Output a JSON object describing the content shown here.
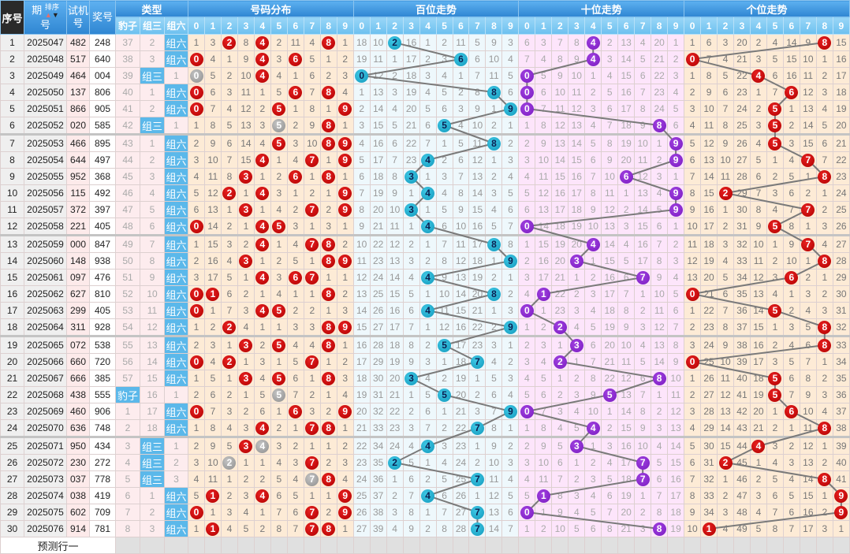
{
  "header": {
    "seq": "序号",
    "period_a": "期",
    "period_b": "号",
    "sort_label": "排序",
    "test_a": "试机",
    "test_b": "号",
    "award": "奖号",
    "type": "类型",
    "dist": "号码分布",
    "bai": "百位走势",
    "shi": "十位走势",
    "ge": "个位走势",
    "type_cols": [
      "豹子",
      "组三",
      "组六"
    ],
    "digits": [
      "0",
      "1",
      "2",
      "3",
      "4",
      "5",
      "6",
      "7",
      "8",
      "9"
    ]
  },
  "rows": [
    {
      "seq": "1",
      "period": "2025047",
      "test": "482",
      "award": "248"
    },
    {
      "seq": "2",
      "period": "2025048",
      "test": "517",
      "award": "640"
    },
    {
      "seq": "3",
      "period": "2025049",
      "test": "464",
      "award": "004"
    },
    {
      "seq": "4",
      "period": "2025050",
      "test": "137",
      "award": "806"
    },
    {
      "seq": "5",
      "period": "2025051",
      "test": "866",
      "award": "905"
    },
    {
      "seq": "6",
      "period": "2025052",
      "test": "020",
      "award": "585"
    },
    {
      "seq": "7",
      "period": "2025053",
      "test": "466",
      "award": "895"
    },
    {
      "seq": "8",
      "period": "2025054",
      "test": "644",
      "award": "497"
    },
    {
      "seq": "9",
      "period": "2025055",
      "test": "952",
      "award": "368"
    },
    {
      "seq": "10",
      "period": "2025056",
      "test": "115",
      "award": "492"
    },
    {
      "seq": "11",
      "period": "2025057",
      "test": "372",
      "award": "397"
    },
    {
      "seq": "12",
      "period": "2025058",
      "test": "221",
      "award": "405"
    },
    {
      "seq": "13",
      "period": "2025059",
      "test": "000",
      "award": "847"
    },
    {
      "seq": "14",
      "period": "2025060",
      "test": "148",
      "award": "938"
    },
    {
      "seq": "15",
      "period": "2025061",
      "test": "097",
      "award": "476"
    },
    {
      "seq": "16",
      "period": "2025062",
      "test": "627",
      "award": "810"
    },
    {
      "seq": "17",
      "period": "2025063",
      "test": "299",
      "award": "405"
    },
    {
      "seq": "18",
      "period": "2025064",
      "test": "311",
      "award": "928"
    },
    {
      "seq": "19",
      "period": "2025065",
      "test": "072",
      "award": "538"
    },
    {
      "seq": "20",
      "period": "2025066",
      "test": "660",
      "award": "720"
    },
    {
      "seq": "21",
      "period": "2025067",
      "test": "666",
      "award": "385"
    },
    {
      "seq": "22",
      "period": "2025068",
      "test": "438",
      "award": "555"
    },
    {
      "seq": "23",
      "period": "2025069",
      "test": "460",
      "award": "906"
    },
    {
      "seq": "24",
      "period": "2025070",
      "test": "636",
      "award": "748"
    },
    {
      "seq": "25",
      "period": "2025071",
      "test": "950",
      "award": "434"
    },
    {
      "seq": "26",
      "period": "2025072",
      "test": "230",
      "award": "272"
    },
    {
      "seq": "27",
      "period": "2025073",
      "test": "037",
      "award": "778"
    },
    {
      "seq": "28",
      "period": "2025074",
      "test": "038",
      "award": "419"
    },
    {
      "seq": "29",
      "period": "2025075",
      "test": "602",
      "award": "709"
    },
    {
      "seq": "30",
      "period": "2025076",
      "test": "914",
      "award": "781"
    }
  ],
  "first_row_omissions": {
    "type": [
      37,
      2,
      null
    ],
    "dist": [
      1,
      3,
      null,
      8,
      null,
      2,
      11,
      4,
      null,
      1
    ],
    "bai": [
      18,
      10,
      null,
      16,
      1,
      2,
      11,
      5,
      9,
      3
    ],
    "shi": [
      6,
      3,
      7,
      8,
      null,
      2,
      13,
      4,
      20,
      1
    ],
    "ge": [
      1,
      6,
      3,
      20,
      2,
      4,
      14,
      9,
      null,
      15
    ]
  },
  "footer": {
    "label": "预测行一"
  },
  "colors": {
    "header_blue": "#2f86d2",
    "type_hit": "#5bb8ea",
    "dist_ball": "#c00000",
    "dist_repeat_ball": "#9a9a9a",
    "bai_ball": "#1ea9c9",
    "shi_ball": "#8a2be2",
    "ge_ball": "#c00000",
    "trend_line": "#7a7a7a"
  }
}
